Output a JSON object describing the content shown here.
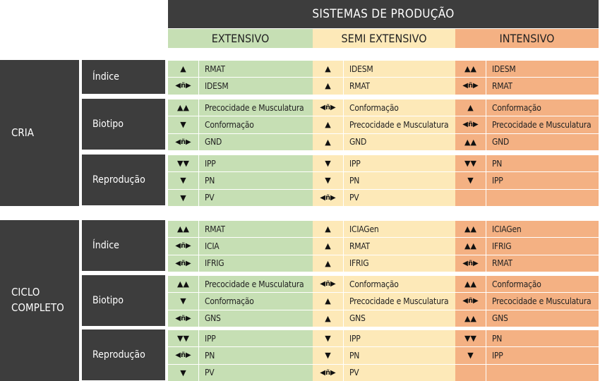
{
  "header": {
    "title": "SISTEMAS DE PRODUÇÃO"
  },
  "systems": [
    {
      "key": "ext",
      "label": "EXTENSIVO"
    },
    {
      "key": "semi",
      "label": "SEMI EXTENSIVO"
    },
    {
      "key": "int",
      "label": "INTENSIVO"
    }
  ],
  "symbols": {
    "up": "▲",
    "upup": "▲▲",
    "down": "▼",
    "downdown": "▼▼",
    "neutral": "◀ñ▶"
  },
  "blocks": [
    {
      "phase": "CRIA",
      "categories": [
        {
          "label": "Índice",
          "rows": [
            {
              "ext": [
                "up",
                "RMAT"
              ],
              "semi": [
                "up",
                "IDESM"
              ],
              "int": [
                "upup",
                "IDESM"
              ]
            },
            {
              "ext": [
                "neutral",
                "IDESM"
              ],
              "semi": [
                "up",
                "RMAT"
              ],
              "int": [
                "neutral",
                "RMAT"
              ]
            }
          ]
        },
        {
          "label": "Biotipo",
          "rows": [
            {
              "ext": [
                "upup",
                "Precocidade e Musculatura"
              ],
              "semi": [
                "neutral",
                "Conformação"
              ],
              "int": [
                "up",
                "Conformação"
              ]
            },
            {
              "ext": [
                "down",
                "Conformação"
              ],
              "semi": [
                "up",
                "Precocidade e Musculatura"
              ],
              "int": [
                "neutral",
                "Precocidade e Musculatura"
              ]
            },
            {
              "ext": [
                "neutral",
                "GND"
              ],
              "semi": [
                "up",
                "GND"
              ],
              "int": [
                "upup",
                "GND"
              ]
            }
          ]
        },
        {
          "label": "Reprodução",
          "rows": [
            {
              "ext": [
                "downdown",
                "IPP"
              ],
              "semi": [
                "down",
                "IPP"
              ],
              "int": [
                "downdown",
                "PN"
              ]
            },
            {
              "ext": [
                "down",
                "PN"
              ],
              "semi": [
                "down",
                "PN"
              ],
              "int": [
                "down",
                "IPP"
              ]
            },
            {
              "ext": [
                "down",
                "PV"
              ],
              "semi": [
                "neutral",
                "PV"
              ],
              "int": [
                "",
                ""
              ]
            }
          ]
        }
      ]
    },
    {
      "phase": "CICLO COMPLETO",
      "categories": [
        {
          "label": "Índice",
          "rows": [
            {
              "ext": [
                "upup",
                "RMAT"
              ],
              "semi": [
                "up",
                "ICIAGen"
              ],
              "int": [
                "upup",
                "ICIAGen"
              ]
            },
            {
              "ext": [
                "neutral",
                "ICIA"
              ],
              "semi": [
                "up",
                "RMAT"
              ],
              "int": [
                "upup",
                "IFRIG"
              ]
            },
            {
              "ext": [
                "neutral",
                "IFRIG"
              ],
              "semi": [
                "up",
                "IFRIG"
              ],
              "int": [
                "neutral",
                "RMAT"
              ]
            }
          ]
        },
        {
          "label": "Biotipo",
          "rows": [
            {
              "ext": [
                "upup",
                "Precocidade e Musculatura"
              ],
              "semi": [
                "neutral",
                "Conformação"
              ],
              "int": [
                "upup",
                "Conformação"
              ]
            },
            {
              "ext": [
                "down",
                "Conformação"
              ],
              "semi": [
                "up",
                "Precocidade e Musculatura"
              ],
              "int": [
                "neutral",
                "Precocidade e Musculatura"
              ]
            },
            {
              "ext": [
                "neutral",
                "GNS"
              ],
              "semi": [
                "up",
                "GNS"
              ],
              "int": [
                "upup",
                "GNS"
              ]
            }
          ]
        },
        {
          "label": "Reprodução",
          "rows": [
            {
              "ext": [
                "downdown",
                "IPP"
              ],
              "semi": [
                "down",
                "IPP"
              ],
              "int": [
                "downdown",
                "PN"
              ]
            },
            {
              "ext": [
                "neutral",
                "PN"
              ],
              "semi": [
                "down",
                "PN"
              ],
              "int": [
                "down",
                "IPP"
              ]
            },
            {
              "ext": [
                "down",
                "PV"
              ],
              "semi": [
                "neutral",
                "PV"
              ],
              "int": [
                "",
                ""
              ]
            }
          ]
        }
      ]
    }
  ]
}
